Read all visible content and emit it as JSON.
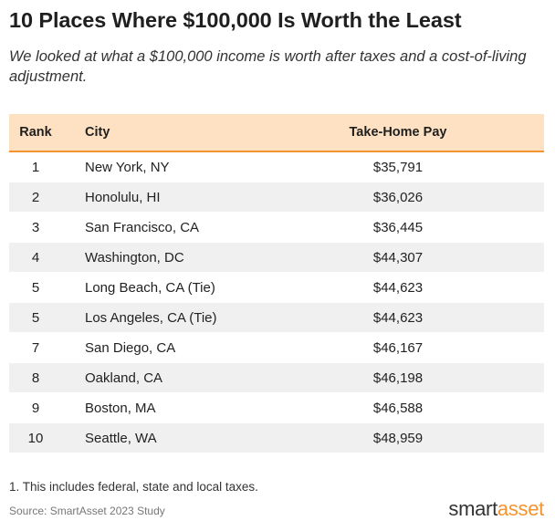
{
  "title": "10 Places Where $100,000 Is Worth the Least",
  "subtitle": "We looked at what a $100,000 income is worth after taxes and a cost-of-living adjustment.",
  "colors": {
    "header_bg": "#fde1c2",
    "header_border": "#f5932f",
    "alt_row_bg": "#f0f0f0",
    "brand_orange": "#f5932f"
  },
  "chart_data": {
    "type": "table",
    "columns": [
      "Rank",
      "City",
      "Take-Home Pay"
    ],
    "rows": [
      [
        "1",
        "New York, NY",
        "$35,791"
      ],
      [
        "2",
        "Honolulu, HI",
        "$36,026"
      ],
      [
        "3",
        "San Francisco, CA",
        "$36,445"
      ],
      [
        "4",
        "Washington, DC",
        "$44,307"
      ],
      [
        "5",
        "Long Beach, CA (Tie)",
        "$44,623"
      ],
      [
        "5",
        "Los Angeles, CA (Tie)",
        "$44,623"
      ],
      [
        "7",
        "San Diego, CA",
        "$46,167"
      ],
      [
        "8",
        "Oakland, CA",
        "$46,198"
      ],
      [
        "9",
        "Boston, MA",
        "$46,588"
      ],
      [
        "10",
        "Seattle, WA",
        "$48,959"
      ]
    ]
  },
  "footnote": "1. This includes federal, state and local taxes.",
  "source": "Source: SmartAsset 2023 Study",
  "logo": {
    "part1": "smart",
    "part2": "asset"
  }
}
